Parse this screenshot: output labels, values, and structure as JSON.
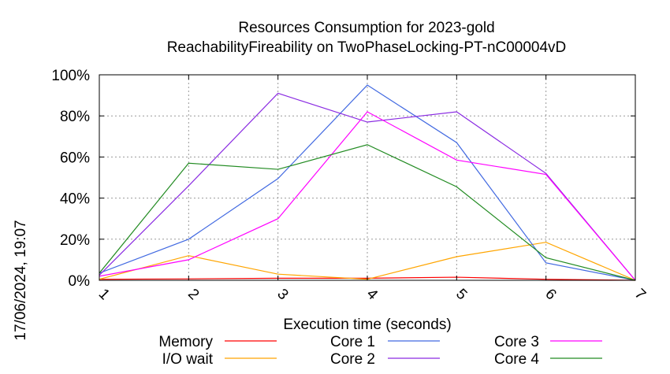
{
  "chart_data": {
    "type": "line",
    "title_line1": "Resources Consumption for 2023-gold",
    "title_line2": "ReachabilityFireability on TwoPhaseLocking-PT-nC00004vD",
    "xlabel": "Execution time (seconds)",
    "timestamp": "17/06/2024, 19:07",
    "x": [
      1,
      2,
      3,
      4,
      5,
      6,
      7
    ],
    "xlim": [
      1,
      7
    ],
    "ylim": [
      0,
      100
    ],
    "y_ticks": [
      0,
      20,
      40,
      60,
      80,
      100
    ],
    "y_tick_labels": [
      "0%",
      "20%",
      "40%",
      "60%",
      "80%",
      "100%"
    ],
    "x_tick_labels": [
      "1",
      "2",
      "3",
      "4",
      "5",
      "6",
      "7"
    ],
    "grid": true,
    "legend_position": "bottom",
    "series": [
      {
        "name": "Memory",
        "color": "#ff0000",
        "values": [
          0.5,
          0.7,
          1,
          1,
          1.5,
          0.5,
          0
        ]
      },
      {
        "name": "I/O wait",
        "color": "#ffa500",
        "values": [
          0.5,
          12,
          3,
          0.5,
          11.5,
          18.5,
          0
        ]
      },
      {
        "name": "Core 1",
        "color": "#4169e1",
        "values": [
          3.5,
          20,
          49.5,
          95,
          67,
          8.5,
          0
        ]
      },
      {
        "name": "Core 2",
        "color": "#8a2be2",
        "values": [
          2.5,
          46,
          91,
          77,
          82,
          52,
          0
        ]
      },
      {
        "name": "Core 3",
        "color": "#ff00ff",
        "values": [
          2,
          10,
          30,
          82,
          58.5,
          51.5,
          0
        ]
      },
      {
        "name": "Core 4",
        "color": "#228b22",
        "values": [
          3.5,
          57,
          54,
          66,
          45.5,
          11,
          0
        ]
      }
    ]
  }
}
